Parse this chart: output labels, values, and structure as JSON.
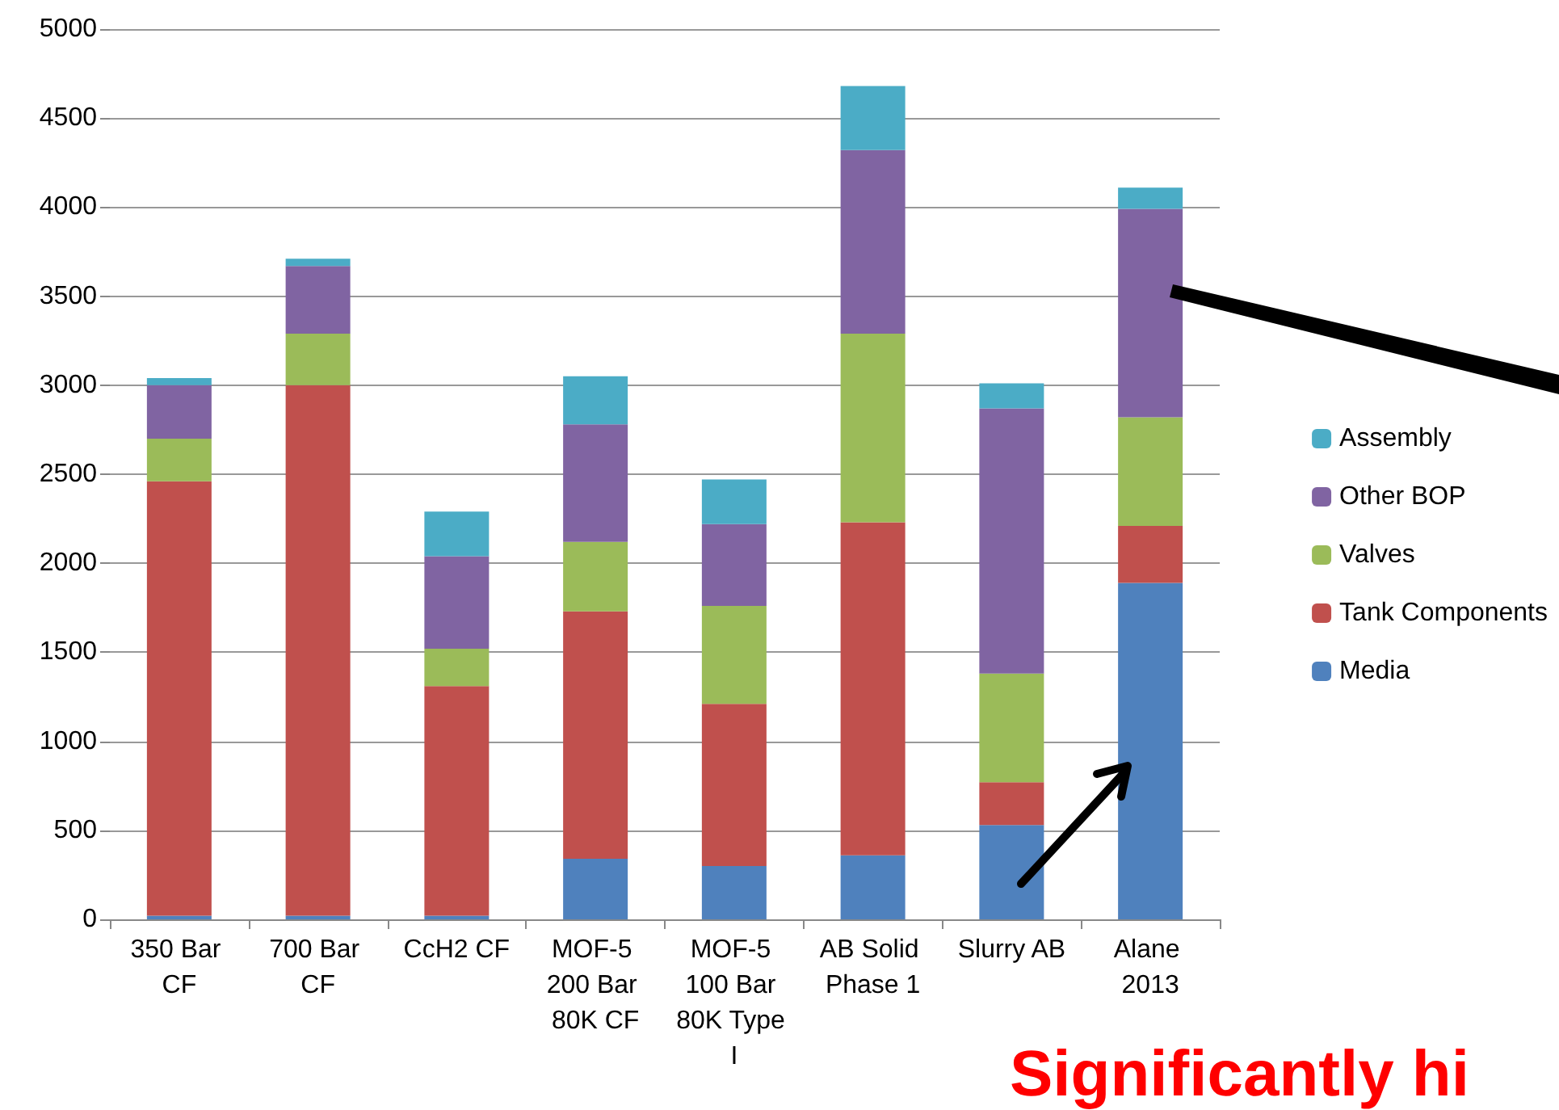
{
  "chart_data": {
    "type": "bar",
    "stacked": true,
    "categories": [
      "350 Bar CF",
      "700 Bar CF",
      "CcH2 CF",
      "MOF-5 200 Bar 80K CF",
      "MOF-5 100 Bar 80K Type I",
      "AB Solid Phase 1",
      "Slurry AB",
      "Alane 2013"
    ],
    "series": [
      {
        "name": "Media",
        "color": "#4f81bd",
        "values": [
          20,
          20,
          20,
          340,
          300,
          360,
          530,
          1890
        ]
      },
      {
        "name": "Tank Components",
        "color": "#c0504d",
        "values": [
          2440,
          2980,
          1290,
          1390,
          910,
          1870,
          240,
          320
        ]
      },
      {
        "name": "Valves",
        "color": "#9bbb59",
        "values": [
          240,
          290,
          210,
          390,
          550,
          1060,
          610,
          610
        ]
      },
      {
        "name": "Other BOP",
        "color": "#8064a2",
        "values": [
          300,
          380,
          520,
          660,
          460,
          1030,
          1490,
          1170
        ]
      },
      {
        "name": "Assembly",
        "color": "#4bacc6",
        "values": [
          40,
          40,
          250,
          270,
          250,
          360,
          140,
          120
        ]
      }
    ],
    "ylim": [
      0,
      5000
    ],
    "yticks": [
      0,
      500,
      1000,
      1500,
      2000,
      2500,
      3000,
      3500,
      4000,
      4500,
      5000
    ],
    "grid": "y",
    "legend": "right",
    "annotations": [
      "Significantly hi"
    ]
  }
}
